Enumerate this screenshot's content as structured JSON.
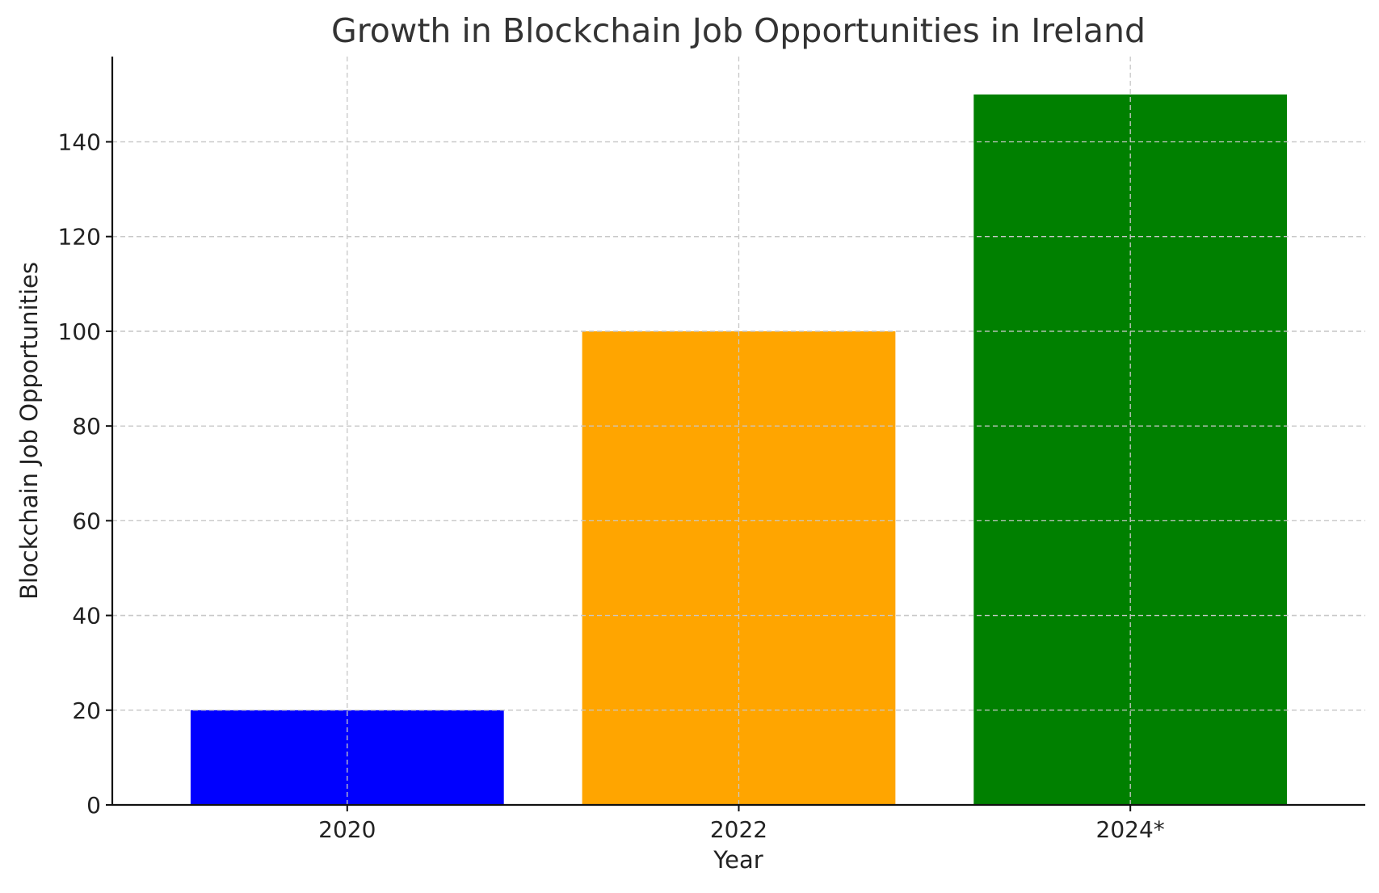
{
  "chart_data": {
    "type": "bar",
    "title": "Growth in Blockchain Job Opportunities in Ireland",
    "xlabel": "Year",
    "ylabel": "Blockchain Job Opportunities",
    "categories": [
      "2020",
      "2022",
      "2024*"
    ],
    "values": [
      20,
      100,
      150
    ],
    "colors": [
      "#0000ff",
      "#ffa500",
      "#008000"
    ],
    "ylim": [
      0,
      158
    ],
    "yticks": [
      0,
      20,
      40,
      60,
      80,
      100,
      120,
      140
    ],
    "grid": true,
    "legend": "none"
  }
}
